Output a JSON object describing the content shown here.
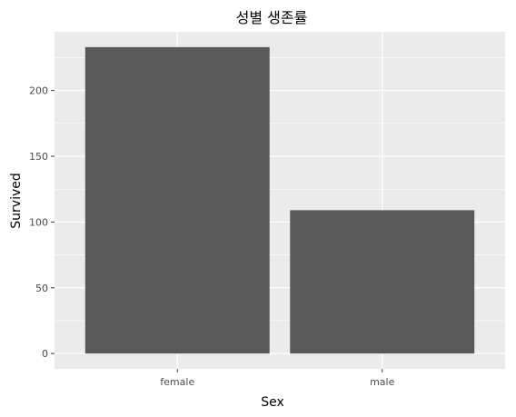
{
  "chart_data": {
    "type": "bar",
    "title": "성별 생존률",
    "xlabel": "Sex",
    "ylabel": "Survived",
    "categories": [
      "female",
      "male"
    ],
    "values": [
      233,
      109
    ],
    "ylim": [
      -11.65,
      244.65
    ],
    "yticks": [
      0,
      50,
      100,
      150,
      200
    ],
    "ytick_labels": [
      "0",
      "50",
      "100",
      "150",
      "200"
    ],
    "grid": true,
    "legend": "none",
    "colors": {
      "panel": "#ebebeb",
      "grid": "#ffffff",
      "bar": "#595959",
      "tick": "#333333"
    }
  }
}
